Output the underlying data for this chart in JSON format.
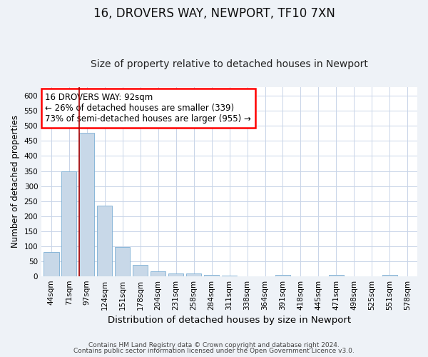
{
  "title1": "16, DROVERS WAY, NEWPORT, TF10 7XN",
  "title2": "Size of property relative to detached houses in Newport",
  "xlabel": "Distribution of detached houses by size in Newport",
  "ylabel": "Number of detached properties",
  "categories": [
    "44sqm",
    "71sqm",
    "97sqm",
    "124sqm",
    "151sqm",
    "178sqm",
    "204sqm",
    "231sqm",
    "258sqm",
    "284sqm",
    "311sqm",
    "338sqm",
    "364sqm",
    "391sqm",
    "418sqm",
    "445sqm",
    "471sqm",
    "498sqm",
    "525sqm",
    "551sqm",
    "578sqm"
  ],
  "values": [
    80,
    348,
    477,
    234,
    96,
    37,
    16,
    8,
    8,
    5,
    2,
    0,
    0,
    5,
    0,
    0,
    5,
    0,
    0,
    5,
    0
  ],
  "bar_color": "#c8d8e8",
  "bar_edgecolor": "#7bafd4",
  "redline_index": 2,
  "annotation_line1": "16 DROVERS WAY: 92sqm",
  "annotation_line2": "← 26% of detached houses are smaller (339)",
  "annotation_line3": "73% of semi-detached houses are larger (955) →",
  "annotation_boxcolor": "white",
  "annotation_edgecolor": "red",
  "footer1": "Contains HM Land Registry data © Crown copyright and database right 2024.",
  "footer2": "Contains public sector information licensed under the Open Government Licence v3.0.",
  "bg_color": "#eef2f7",
  "plot_bg_color": "#ffffff",
  "ylim": [
    0,
    630
  ],
  "yticks": [
    0,
    50,
    100,
    150,
    200,
    250,
    300,
    350,
    400,
    450,
    500,
    550,
    600
  ],
  "grid_color": "#c8d4e8",
  "redline_color": "#aa0000",
  "title1_fontsize": 12,
  "title2_fontsize": 10,
  "xlabel_fontsize": 9.5,
  "ylabel_fontsize": 8.5,
  "tick_fontsize": 7.5,
  "annotation_fontsize": 8.5,
  "footer_fontsize": 6.5
}
